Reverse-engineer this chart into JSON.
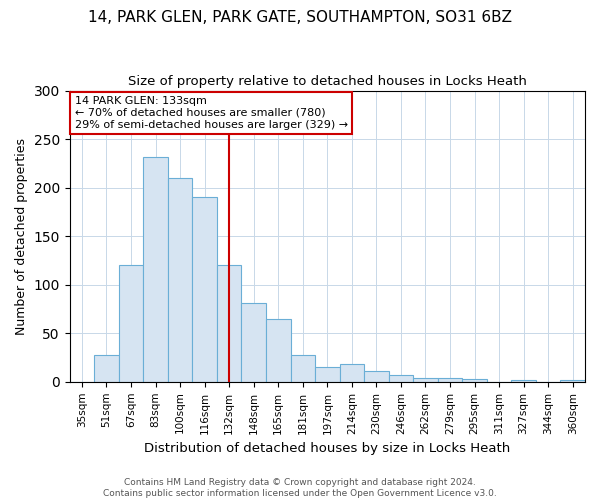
{
  "title1": "14, PARK GLEN, PARK GATE, SOUTHAMPTON, SO31 6BZ",
  "title2": "Size of property relative to detached houses in Locks Heath",
  "xlabel": "Distribution of detached houses by size in Locks Heath",
  "ylabel": "Number of detached properties",
  "categories": [
    "35sqm",
    "51sqm",
    "67sqm",
    "83sqm",
    "100sqm",
    "116sqm",
    "132sqm",
    "148sqm",
    "165sqm",
    "181sqm",
    "197sqm",
    "214sqm",
    "230sqm",
    "246sqm",
    "262sqm",
    "279sqm",
    "295sqm",
    "311sqm",
    "327sqm",
    "344sqm",
    "360sqm"
  ],
  "values": [
    0,
    28,
    120,
    232,
    210,
    190,
    120,
    81,
    65,
    28,
    15,
    18,
    11,
    7,
    4,
    4,
    3,
    0,
    2,
    0,
    2
  ],
  "bar_color": "#d6e4f2",
  "bar_edge_color": "#6aaed6",
  "property_line_index": 6,
  "property_line_color": "#cc0000",
  "annotation_text": "14 PARK GLEN: 133sqm\n← 70% of detached houses are smaller (780)\n29% of semi-detached houses are larger (329) →",
  "annotation_box_color": "#ffffff",
  "annotation_box_edge_color": "#cc0000",
  "footer": "Contains HM Land Registry data © Crown copyright and database right 2024.\nContains public sector information licensed under the Open Government Licence v3.0.",
  "ylim": [
    0,
    300
  ],
  "title1_fontsize": 11,
  "title2_fontsize": 9.5,
  "xlabel_fontsize": 9.5,
  "ylabel_fontsize": 9,
  "tick_fontsize": 7.5,
  "annotation_fontsize": 8,
  "footer_fontsize": 6.5,
  "background_color": "#ffffff",
  "grid_color": "#c8d8e8"
}
